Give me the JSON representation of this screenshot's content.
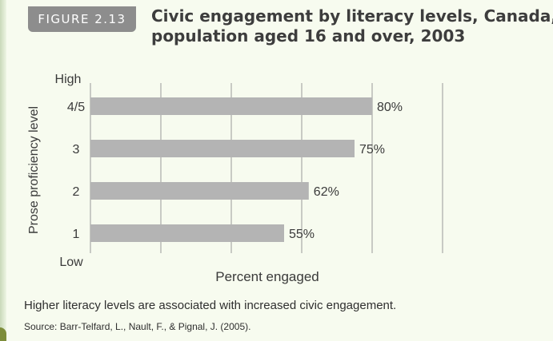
{
  "figure": {
    "label": "FIGURE 2.13",
    "title_lines": [
      "Civic engagement by literacy levels, Canada,",
      "population aged 16 and over, 2003"
    ],
    "caption": "Higher literacy levels are associated with increased civic engagement.",
    "source": "Source: Barr-Telfard, L., Nault, F., & Pignal, J. (2005)."
  },
  "chart_data": {
    "type": "bar",
    "orientation": "horizontal",
    "title": "Civic engagement by literacy levels, Canada, population aged 16 and over, 2003",
    "categories": [
      "4/5",
      "3",
      "2",
      "1"
    ],
    "values": [
      80,
      75,
      62,
      55
    ],
    "data_labels": [
      "80%",
      "75%",
      "62%",
      "55%"
    ],
    "ylabel": "Prose proficiency level",
    "xlabel": "Percent engaged",
    "y_axis_end_labels": {
      "high": "High",
      "low": "Low"
    },
    "xlim": [
      0,
      100
    ],
    "x_ticks": [
      0,
      20,
      40,
      60,
      80,
      100
    ],
    "grid": true,
    "colors": {
      "bar": "#b4b4b4",
      "grid": "#9a9a9a",
      "text": "#3a3a3a"
    }
  }
}
